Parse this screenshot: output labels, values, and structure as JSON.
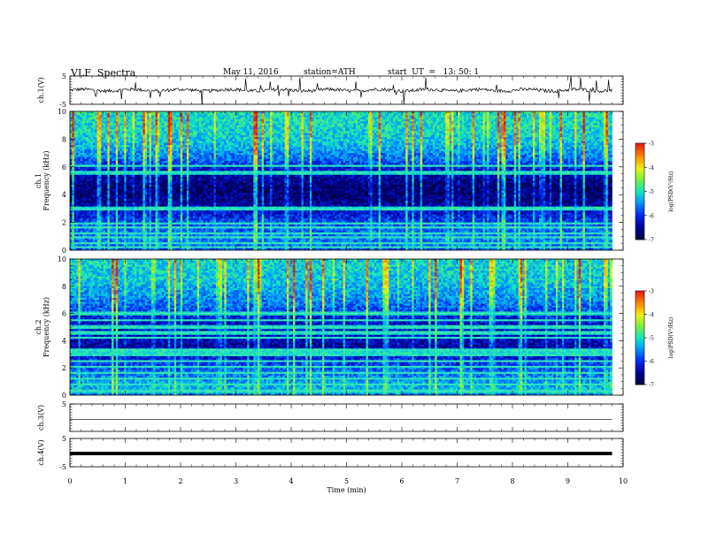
{
  "header": {
    "title": "VLF  Spectra",
    "date": "May 11, 2016",
    "station": "station=ATH",
    "start": "start  UT  =   13: 50: 1"
  },
  "chart_data": [
    {
      "type": "line",
      "ylabel": "ch.1(V)",
      "ylim": [
        -5,
        5
      ],
      "ytick_labels": [
        "5",
        "-5"
      ],
      "series": [
        {
          "mean": 0.0,
          "amplitude_approx": 0.6,
          "sparse_spikes": true
        }
      ]
    },
    {
      "type": "heatmap",
      "ylabel_lines": [
        "ch.1",
        "Frequency  (kHz)"
      ],
      "ylim": [
        0,
        10
      ],
      "ytick_labels": [
        "0",
        "2",
        "4",
        "6",
        "8",
        "10"
      ],
      "colorbar": {
        "label": "log(PSD(V²/Hz)",
        "range": [
          -7,
          -3
        ],
        "tick_labels": [
          "-3",
          "-4",
          "-5",
          "-6",
          "-7"
        ]
      },
      "profile_kHz": [
        [
          0,
          -5.8
        ],
        [
          0.8,
          -5.6
        ],
        [
          1.8,
          -5.8
        ],
        [
          2.5,
          -6.1
        ],
        [
          3.5,
          -6.6
        ],
        [
          4.5,
          -6.7
        ],
        [
          5.5,
          -6.4
        ],
        [
          6.5,
          -5.7
        ],
        [
          7.5,
          -5.3
        ],
        [
          8.5,
          -5.1
        ],
        [
          10,
          -5.0
        ]
      ],
      "persistent_lines_kHz": [
        0.2,
        0.5,
        0.9,
        1.2,
        1.6,
        1.9,
        3.0,
        5.6,
        6.1
      ],
      "note": "vertical broadband spheric streaks throughout"
    },
    {
      "type": "heatmap",
      "ylabel_lines": [
        "ch.2",
        "Frequency  (kHz)"
      ],
      "ylim": [
        0,
        10
      ],
      "ytick_labels": [
        "0",
        "2",
        "4",
        "6",
        "8",
        "10"
      ],
      "colorbar": {
        "label": "log(PSD(V²/Hz)",
        "range": [
          -7,
          -3
        ],
        "tick_labels": [
          "-3",
          "-4",
          "-5",
          "-6",
          "-7"
        ]
      },
      "profile_kHz": [
        [
          0,
          -5.6
        ],
        [
          0.6,
          -5.3
        ],
        [
          1.5,
          -5.6
        ],
        [
          2.5,
          -6.0
        ],
        [
          3.3,
          -6.5
        ],
        [
          4.3,
          -6.3
        ],
        [
          5.5,
          -6.2
        ],
        [
          6.5,
          -5.7
        ],
        [
          7.5,
          -5.4
        ],
        [
          8.5,
          -5.2
        ],
        [
          10,
          -5.1
        ]
      ],
      "persistent_lines_kHz": [
        0.3,
        0.8,
        1.2,
        1.6,
        2.1,
        2.5,
        3.0,
        3.3,
        4.2,
        4.6,
        5.0,
        5.5,
        6.0
      ],
      "note": "vertical broadband spheric streaks throughout"
    },
    {
      "type": "line",
      "ylabel": "ch.3(V)",
      "ylim": [
        -5,
        5
      ],
      "ytick_labels": [
        "5"
      ],
      "series": [
        {
          "constant": -0.7
        }
      ]
    },
    {
      "type": "line",
      "ylabel": "ch.4(V)",
      "ylim": [
        -5,
        5
      ],
      "ytick_labels": [
        "5",
        "-5"
      ],
      "series": [
        {
          "constant": -0.3,
          "thick": true
        }
      ]
    }
  ],
  "time_axis": {
    "label": "Time  (min)",
    "xlim": [
      0,
      10
    ],
    "tick_labels": [
      "0",
      "1",
      "2",
      "3",
      "4",
      "5",
      "6",
      "7",
      "8",
      "9",
      "10"
    ],
    "data_end_min": 9.8
  }
}
